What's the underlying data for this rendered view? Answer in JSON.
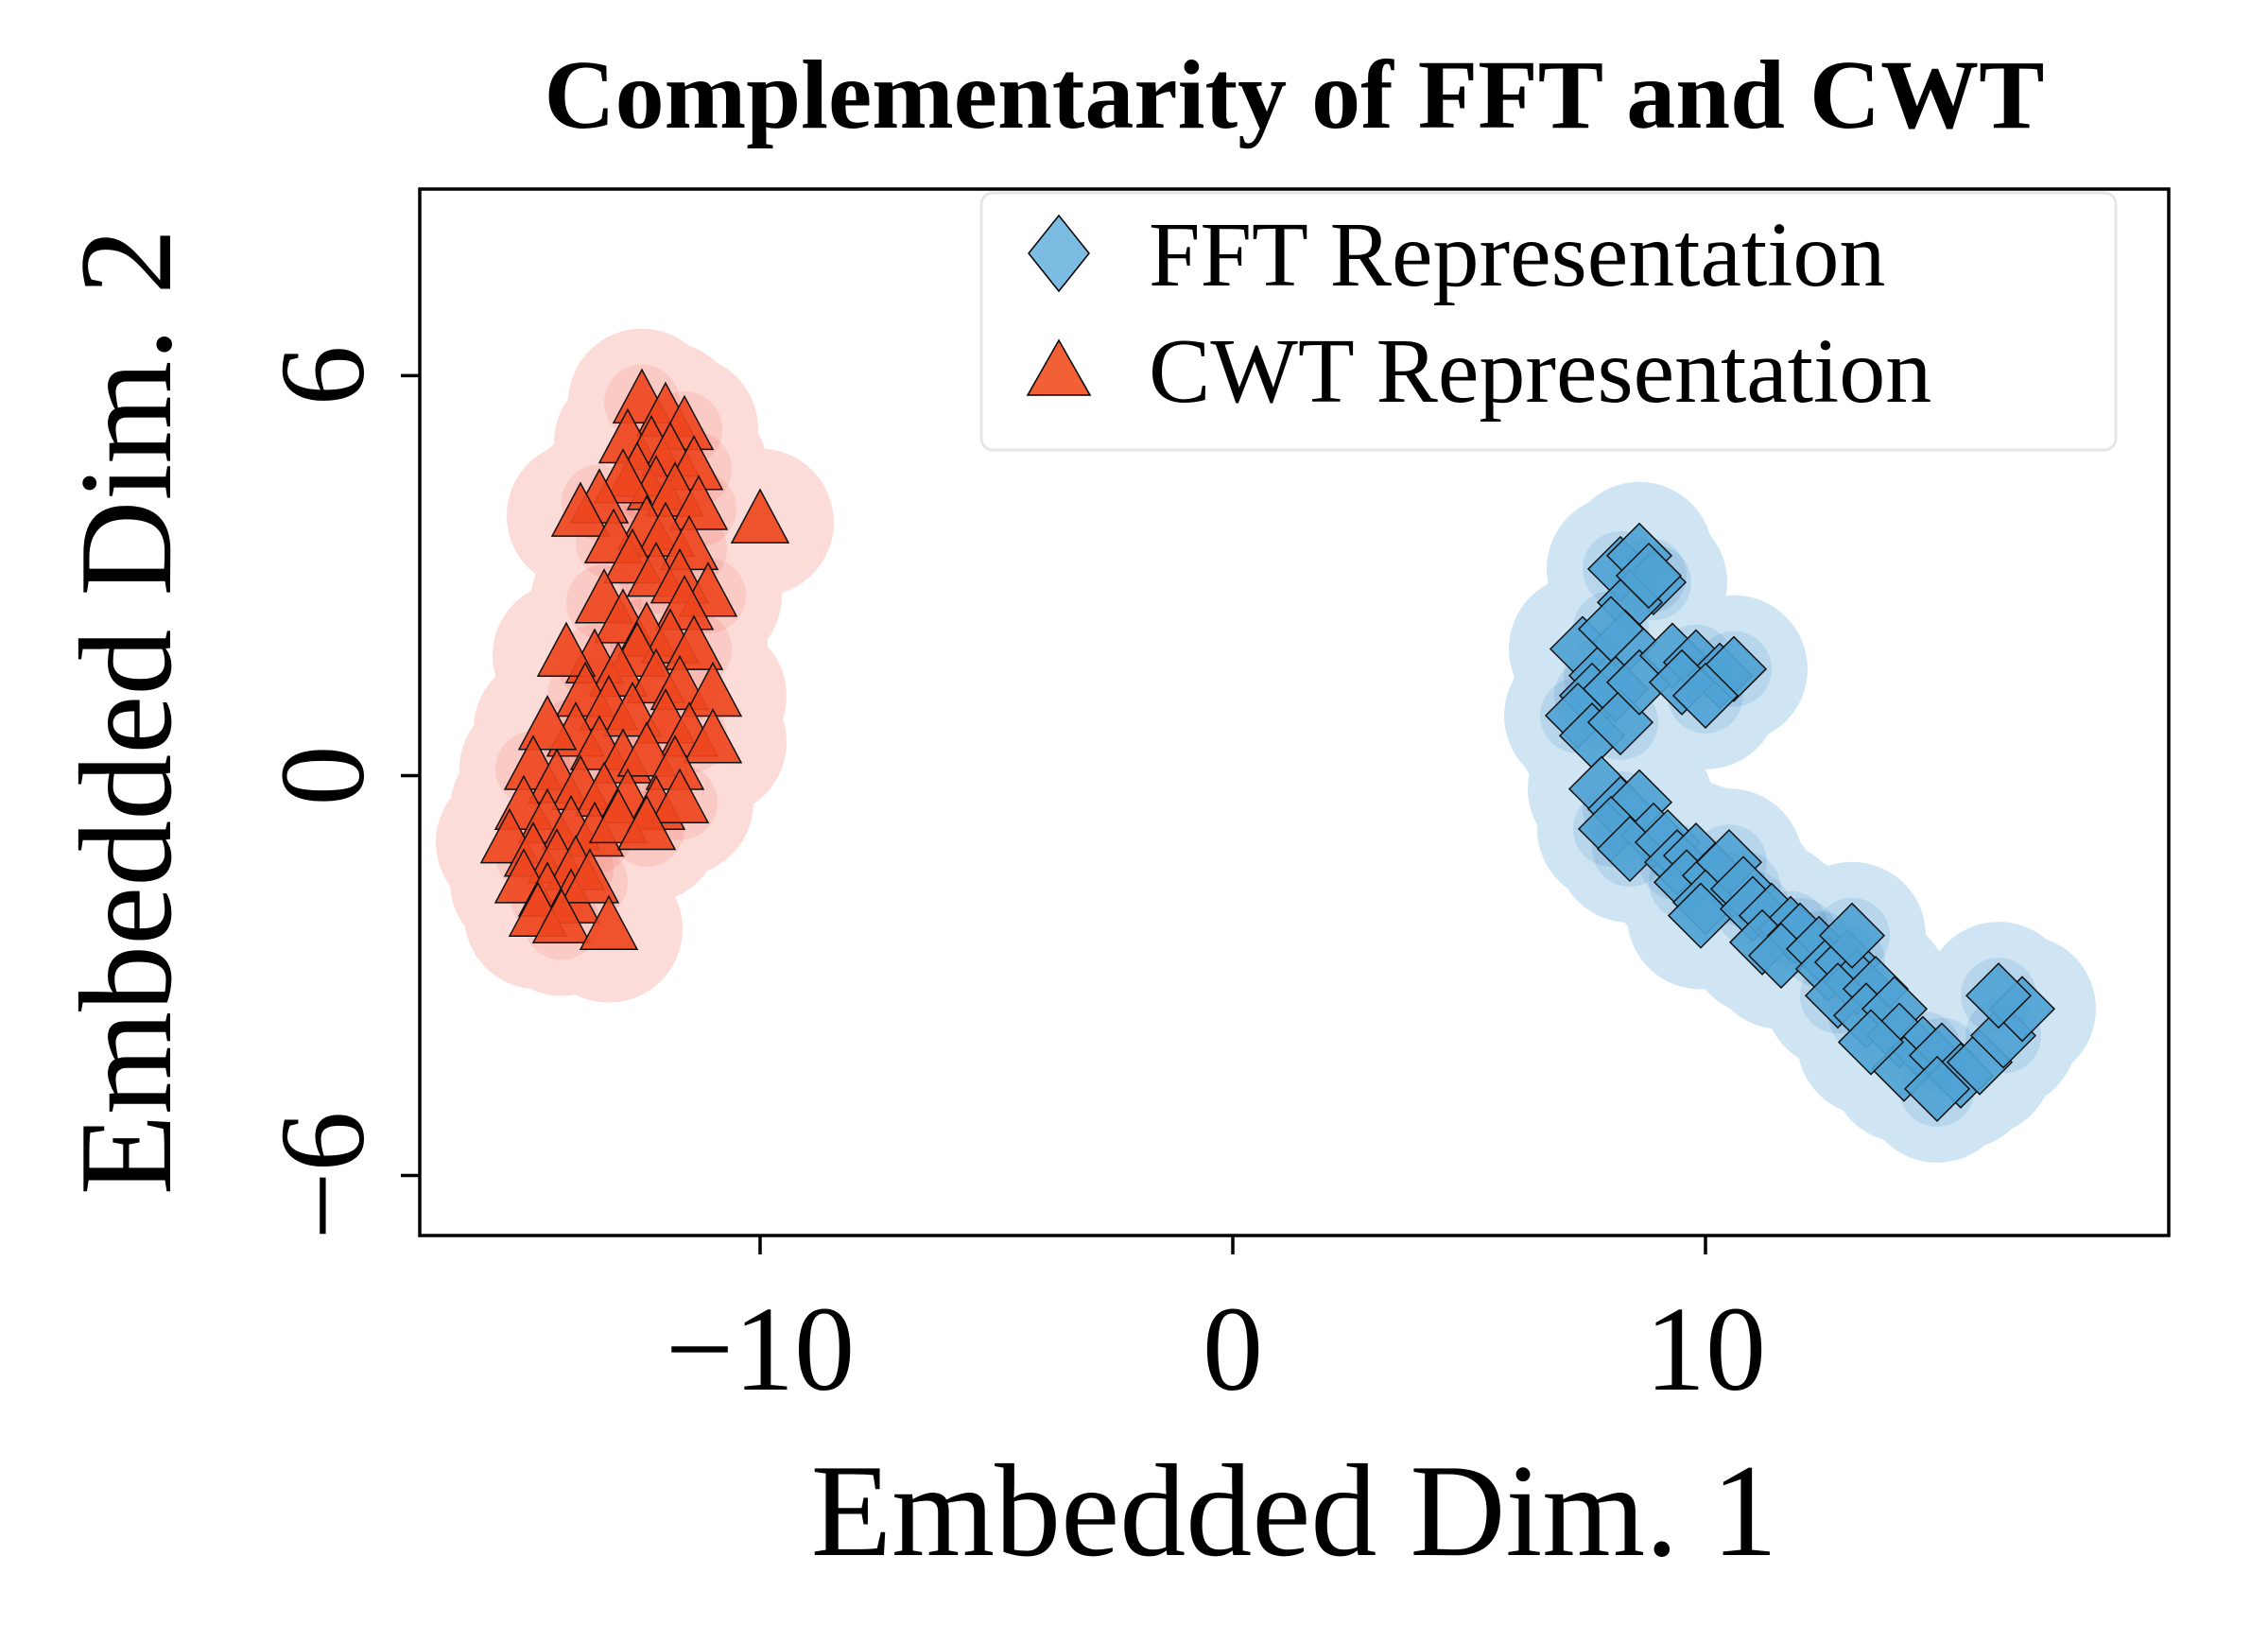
{
  "chart_data": {
    "type": "scatter",
    "title": "Complementarity of FFT and CWT",
    "xlabel": "Embedded Dim. 1",
    "ylabel": "Embedded Dim. 2",
    "xlim": [
      -17.2,
      19.8
    ],
    "ylim": [
      -6.9,
      8.8
    ],
    "xticks": [
      -10,
      0,
      10
    ],
    "xtick_labels": [
      "−10",
      "0",
      "10"
    ],
    "yticks": [
      -6,
      0,
      6
    ],
    "ytick_labels": [
      "−6",
      "0",
      "6"
    ],
    "grid": false,
    "legend_position": "top-right",
    "series": [
      {
        "name": "FFT Representation",
        "marker": "diamond",
        "color": "#4fa3d4",
        "legend_color": "#7dbce2",
        "density_color": "#cfe5f3",
        "points": [
          [
            8.2,
            3.1
          ],
          [
            8.6,
            3.3
          ],
          [
            8.9,
            2.9
          ],
          [
            8.4,
            2.6
          ],
          [
            8.8,
            3.0
          ],
          [
            7.4,
            1.9
          ],
          [
            7.8,
            1.5
          ],
          [
            8.3,
            2.0
          ],
          [
            7.6,
            1.2
          ],
          [
            8.1,
            1.3
          ],
          [
            7.3,
            0.9
          ],
          [
            7.6,
            0.6
          ],
          [
            8.2,
            0.8
          ],
          [
            8.6,
            1.4
          ],
          [
            8.0,
            2.2
          ],
          [
            9.3,
            1.8
          ],
          [
            9.8,
            1.7
          ],
          [
            10.3,
            1.5
          ],
          [
            10.6,
            1.6
          ],
          [
            9.5,
            1.4
          ],
          [
            10.0,
            1.2
          ],
          [
            7.8,
            -0.2
          ],
          [
            8.2,
            -0.5
          ],
          [
            8.6,
            -0.4
          ],
          [
            8.0,
            -0.8
          ],
          [
            8.9,
            -0.9
          ],
          [
            8.4,
            -1.1
          ],
          [
            9.2,
            -1.0
          ],
          [
            9.4,
            -1.3
          ],
          [
            9.8,
            -1.2
          ],
          [
            9.6,
            -1.6
          ],
          [
            10.2,
            -1.5
          ],
          [
            10.5,
            -1.3
          ],
          [
            10.0,
            -1.9
          ],
          [
            10.8,
            -1.7
          ],
          [
            9.9,
            -2.1
          ],
          [
            11.0,
            -2.0
          ],
          [
            11.4,
            -2.1
          ],
          [
            11.8,
            -2.3
          ],
          [
            11.2,
            -2.5
          ],
          [
            12.0,
            -2.4
          ],
          [
            11.6,
            -2.7
          ],
          [
            12.4,
            -2.6
          ],
          [
            12.6,
            -2.9
          ],
          [
            13.0,
            -2.8
          ],
          [
            13.2,
            -3.1
          ],
          [
            12.8,
            -3.3
          ],
          [
            13.6,
            -3.2
          ],
          [
            13.4,
            -3.6
          ],
          [
            14.0,
            -3.5
          ],
          [
            13.1,
            -2.4
          ],
          [
            14.1,
            -3.9
          ],
          [
            14.6,
            -4.1
          ],
          [
            14.2,
            -4.4
          ],
          [
            15.0,
            -4.2
          ],
          [
            15.4,
            -4.5
          ],
          [
            14.9,
            -4.7
          ],
          [
            15.8,
            -4.3
          ],
          [
            16.3,
            -3.9
          ],
          [
            16.7,
            -3.5
          ],
          [
            16.2,
            -3.3
          ],
          [
            13.5,
            -4.0
          ]
        ]
      },
      {
        "name": "CWT Representation",
        "marker": "triangle",
        "color": "#ee4720",
        "legend_color": "#f26035",
        "density_color": "#fcdcd8",
        "points": [
          [
            -12.5,
            5.6
          ],
          [
            -12.0,
            5.4
          ],
          [
            -11.6,
            5.2
          ],
          [
            -12.8,
            5.0
          ],
          [
            -12.3,
            4.9
          ],
          [
            -11.9,
            4.8
          ],
          [
            -11.4,
            4.6
          ],
          [
            -12.6,
            4.5
          ],
          [
            -12.2,
            4.3
          ],
          [
            -11.8,
            4.2
          ],
          [
            -11.3,
            4.0
          ],
          [
            -12.9,
            4.4
          ],
          [
            -13.4,
            4.1
          ],
          [
            -13.8,
            3.9
          ],
          [
            -12.4,
            3.7
          ],
          [
            -12.0,
            3.6
          ],
          [
            -11.5,
            3.4
          ],
          [
            -10.0,
            3.8
          ],
          [
            -13.1,
            3.5
          ],
          [
            -12.7,
            3.2
          ],
          [
            -12.2,
            3.0
          ],
          [
            -11.7,
            2.9
          ],
          [
            -11.1,
            2.7
          ],
          [
            -11.6,
            2.5
          ],
          [
            -13.3,
            2.6
          ],
          [
            -12.9,
            2.3
          ],
          [
            -12.4,
            2.1
          ],
          [
            -11.9,
            2.0
          ],
          [
            -11.4,
            1.9
          ],
          [
            -12.6,
            1.8
          ],
          [
            -13.5,
            1.7
          ],
          [
            -14.1,
            1.8
          ],
          [
            -13.0,
            1.5
          ],
          [
            -12.2,
            1.4
          ],
          [
            -11.7,
            1.3
          ],
          [
            -11.0,
            1.2
          ],
          [
            -13.7,
            1.2
          ],
          [
            -13.2,
            1.0
          ],
          [
            -12.7,
            0.9
          ],
          [
            -12.0,
            0.8
          ],
          [
            -11.5,
            0.6
          ],
          [
            -11.0,
            0.5
          ],
          [
            -13.9,
            0.6
          ],
          [
            -14.5,
            0.7
          ],
          [
            -13.4,
            0.4
          ],
          [
            -12.9,
            0.2
          ],
          [
            -12.4,
            0.3
          ],
          [
            -11.8,
            0.1
          ],
          [
            -14.8,
            0.1
          ],
          [
            -14.3,
            -0.1
          ],
          [
            -13.8,
            -0.2
          ],
          [
            -13.3,
            -0.3
          ],
          [
            -12.8,
            -0.4
          ],
          [
            -12.2,
            -0.5
          ],
          [
            -11.7,
            -0.4
          ],
          [
            -15.0,
            -0.5
          ],
          [
            -14.5,
            -0.7
          ],
          [
            -14.0,
            -0.8
          ],
          [
            -13.5,
            -0.9
          ],
          [
            -13.0,
            -0.7
          ],
          [
            -12.4,
            -0.8
          ],
          [
            -15.3,
            -1.0
          ],
          [
            -14.8,
            -1.2
          ],
          [
            -14.3,
            -1.3
          ],
          [
            -13.9,
            -1.4
          ],
          [
            -15.0,
            -1.6
          ],
          [
            -14.5,
            -1.8
          ],
          [
            -14.0,
            -1.9
          ],
          [
            -13.6,
            -1.6
          ],
          [
            -14.7,
            -2.1
          ],
          [
            -14.2,
            -2.2
          ],
          [
            -13.2,
            -2.3
          ]
        ]
      }
    ]
  }
}
